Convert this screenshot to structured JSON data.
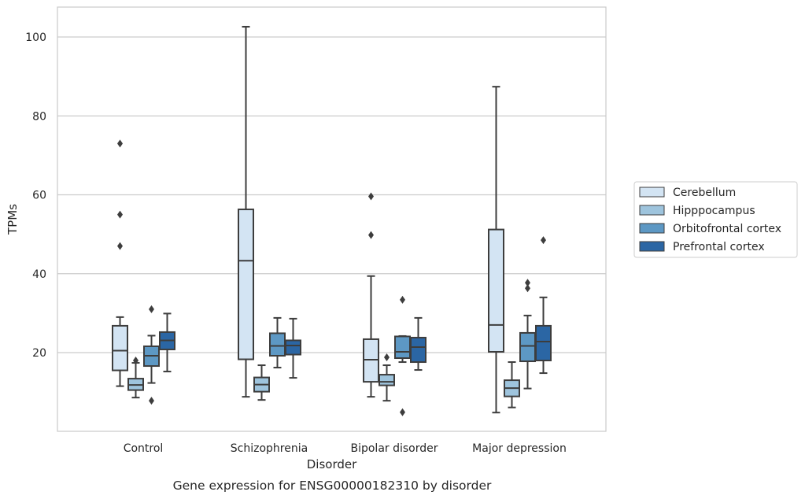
{
  "chart_data": {
    "type": "box",
    "xlabel": "Disorder",
    "ylabel": "TPMs",
    "caption": "Gene expression for ENSG00000182310 by disorder",
    "ylim": [
      0,
      107
    ],
    "yticks": [
      20,
      40,
      60,
      80,
      100
    ],
    "grid": "horizontal",
    "legend_position": "right",
    "categories": [
      "Control",
      "Schizophrenia",
      "Bipolar disorder",
      "Major depression"
    ],
    "series": [
      {
        "name": "Cerebellum",
        "color": "#d3e4f3",
        "boxes": [
          {
            "whisker_low": 11.5,
            "q1": 15.5,
            "median": 20.5,
            "q3": 26.8,
            "whisker_high": 29,
            "outliers": [
              47,
              55,
              73
            ]
          },
          {
            "whisker_low": 8.8,
            "q1": 18.3,
            "median": 43.3,
            "q3": 56.3,
            "whisker_high": 102.6,
            "outliers": []
          },
          {
            "whisker_low": 8.8,
            "q1": 12.6,
            "median": 18.2,
            "q3": 23.4,
            "whisker_high": 39.4,
            "outliers": [
              49.8,
              59.6
            ]
          },
          {
            "whisker_low": 4.8,
            "q1": 20.2,
            "median": 27,
            "q3": 51.2,
            "whisker_high": 87.4,
            "outliers": []
          }
        ]
      },
      {
        "name": "Hipppocampus",
        "color": "#9ec4dd",
        "boxes": [
          {
            "whisker_low": 8.6,
            "q1": 10.5,
            "median": 11.8,
            "q3": 13.4,
            "whisker_high": 17.4,
            "outliers": [
              18
            ]
          },
          {
            "whisker_low": 8.0,
            "q1": 10.1,
            "median": 11.9,
            "q3": 13.7,
            "whisker_high": 16.8,
            "outliers": []
          },
          {
            "whisker_low": 7.8,
            "q1": 11.7,
            "median": 12.6,
            "q3": 14.4,
            "whisker_high": 16.8,
            "outliers": [
              18.8
            ]
          },
          {
            "whisker_low": 6.1,
            "q1": 8.9,
            "median": 11.0,
            "q3": 13.0,
            "whisker_high": 17.6,
            "outliers": []
          }
        ]
      },
      {
        "name": "Orbitofrontal cortex",
        "color": "#5d98c4",
        "boxes": [
          {
            "whisker_low": 12.3,
            "q1": 16.6,
            "median": 19.2,
            "q3": 21.6,
            "whisker_high": 24.3,
            "outliers": [
              7.8,
              31
            ]
          },
          {
            "whisker_low": 16.2,
            "q1": 19.2,
            "median": 21.7,
            "q3": 24.9,
            "whisker_high": 28.8,
            "outliers": []
          },
          {
            "whisker_low": 17.6,
            "q1": 18.6,
            "median": 20.2,
            "q3": 24.1,
            "whisker_high": 24.2,
            "outliers": [
              4.9,
              33.4
            ]
          },
          {
            "whisker_low": 10.9,
            "q1": 17.8,
            "median": 21.7,
            "q3": 25.0,
            "whisker_high": 29.4,
            "outliers": [
              36.3,
              37.7
            ]
          }
        ]
      },
      {
        "name": "Prefrontal cortex",
        "color": "#2b66a4",
        "boxes": [
          {
            "whisker_low": 15.2,
            "q1": 20.8,
            "median": 23.1,
            "q3": 25.2,
            "whisker_high": 29.9,
            "outliers": []
          },
          {
            "whisker_low": 13.6,
            "q1": 19.5,
            "median": 21.8,
            "q3": 23.1,
            "whisker_high": 28.6,
            "outliers": []
          },
          {
            "whisker_low": 15.6,
            "q1": 17.6,
            "median": 21.4,
            "q3": 23.8,
            "whisker_high": 28.8,
            "outliers": []
          },
          {
            "whisker_low": 14.8,
            "q1": 18.0,
            "median": 22.8,
            "q3": 26.8,
            "whisker_high": 34.0,
            "outliers": [
              48.5
            ]
          }
        ]
      }
    ]
  }
}
